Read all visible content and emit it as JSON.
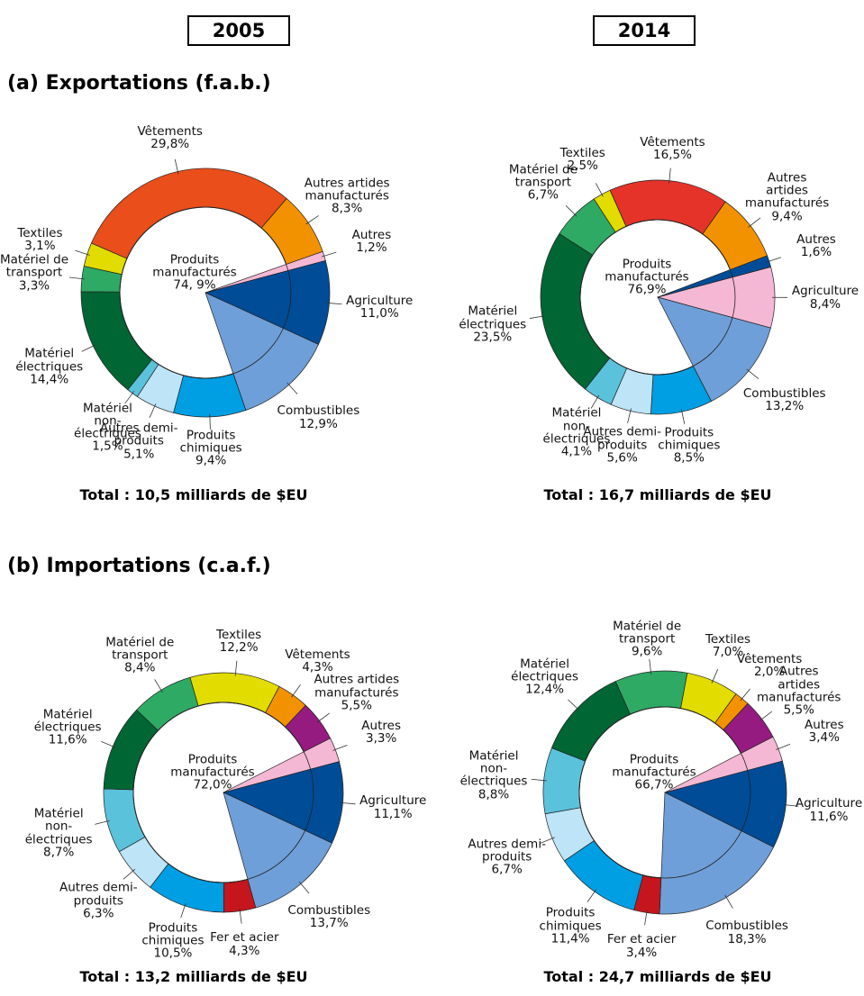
{
  "columns": [
    "2005",
    "2014"
  ],
  "sections": [
    "(a) Exportations (f.a.b.)",
    "(b) Importations (c.a.f.)"
  ],
  "chart_data": [
    {
      "type": "pie",
      "subtitle": "Total : 10,5 milliards de $EU",
      "center": {
        "label": "Produits\nmanufacturés",
        "value": 74.9,
        "value_label": "74, 9%"
      },
      "categories": [
        "Agriculture",
        "Combustibles",
        "Produits\nchimiques",
        "Autres demi-\nproduits",
        "Matériel\nnon-\nélectriques",
        "Matériel\nélectriques",
        "Matériel de\ntransport",
        "Textiles",
        "Vêtements",
        "Autres artides\nmanufacturés",
        "Autres"
      ],
      "values": [
        11.0,
        12.9,
        9.4,
        5.1,
        1.5,
        14.4,
        3.3,
        3.1,
        29.8,
        8.3,
        1.2
      ],
      "value_labels": [
        "11,0%",
        "12,9%",
        "9,4%",
        "5,1%",
        "1,5%",
        "14,4%",
        "3,3%",
        "3,1%",
        "29,8%",
        "8,3%",
        "1,2%"
      ],
      "ring": [
        false,
        false,
        true,
        true,
        true,
        true,
        true,
        true,
        true,
        true,
        false
      ],
      "colors": [
        "#004c97",
        "#6f9fd8",
        "#009fe3",
        "#bde4f7",
        "#5bc2dc",
        "#006633",
        "#2eaa64",
        "#e2dc00",
        "#e94e1b",
        "#f39200",
        "#f5b8d4"
      ]
    },
    {
      "type": "pie",
      "subtitle": "Total : 16,7 milliards de $EU",
      "center": {
        "label": "Produits\nmanufacturés",
        "value": 76.9,
        "value_label": "76,9%"
      },
      "categories": [
        "Agriculture",
        "Combustibles",
        "Produits\nchimiques",
        "Autres demi-\nproduits",
        "Matériel\nnon-\nélectriques",
        "Matériel\nélectriques",
        "Matériel de\ntransport",
        "Textiles",
        "Vêtements",
        "Autres artides\nmanufacturés",
        "Autres"
      ],
      "values": [
        8.4,
        13.2,
        8.5,
        5.6,
        4.1,
        23.5,
        6.7,
        2.5,
        16.5,
        9.4,
        1.6
      ],
      "value_labels": [
        "8,4%",
        "13,2%",
        "8,5%",
        "5,6%",
        "4,1%",
        "23,5%",
        "6,7%",
        "2,5%",
        "16,5%",
        "9,4%",
        "1,6%"
      ],
      "ring": [
        false,
        false,
        true,
        true,
        true,
        true,
        true,
        true,
        true,
        true,
        false
      ],
      "colors": [
        "#f5b8d4",
        "#6f9fd8",
        "#009fe3",
        "#bde4f7",
        "#5bc2dc",
        "#006633",
        "#2eaa64",
        "#e2dc00",
        "#e5332a",
        "#f39200",
        "#004c97"
      ]
    },
    {
      "type": "pie",
      "subtitle": "Total : 13,2 milliards de $EU",
      "center": {
        "label": "Produits\nmanufacturés",
        "value": 72.0,
        "value_label": "72,0%"
      },
      "categories": [
        "Agriculture",
        "Combustibles",
        "Fer et acier",
        "Produits\nchimiques",
        "Autres demi-\nproduits",
        "Matériel\nnon-\nélectriques",
        "Matériel\nélectriques",
        "Matériel de\ntransport",
        "Textiles",
        "Vêtements",
        "Autres artides\nmanufacturés",
        "Autres"
      ],
      "values": [
        11.1,
        13.7,
        4.3,
        10.5,
        6.3,
        8.7,
        11.6,
        8.4,
        12.2,
        4.3,
        5.5,
        3.3
      ],
      "value_labels": [
        "11,1%",
        "13,7%",
        "4,3%",
        "10,5%",
        "6,3%",
        "8,7%",
        "11,6%",
        "8,4%",
        "12,2%",
        "4,3%",
        "5,5%",
        "3,3%"
      ],
      "ring": [
        false,
        false,
        true,
        true,
        true,
        true,
        true,
        true,
        true,
        true,
        true,
        false
      ],
      "colors": [
        "#004c97",
        "#6f9fd8",
        "#c4161c",
        "#009fe3",
        "#bde4f7",
        "#5bc2dc",
        "#006633",
        "#2eaa64",
        "#e2dc00",
        "#f39200",
        "#951b81",
        "#f5b8d4"
      ]
    },
    {
      "type": "pie",
      "subtitle": "Total : 24,7 milliards de $EU",
      "center": {
        "label": "Produits\nmanufacturés",
        "value": 66.7,
        "value_label": "66,7%"
      },
      "categories": [
        "Agriculture",
        "Combustibles",
        "Fer et acier",
        "Produits\nchimiques",
        "Autres demi-\nproduits",
        "Matériel\nnon-\nélectriques",
        "Matériel\nélectriques",
        "Matériel de\ntransport",
        "Textiles",
        "Vêtements",
        "Autres artides\nmanufacturés",
        "Autres"
      ],
      "values": [
        11.6,
        18.3,
        3.4,
        11.4,
        6.7,
        8.8,
        12.4,
        9.6,
        7.0,
        2.0,
        5.5,
        3.4
      ],
      "value_labels": [
        "11,6%",
        "18,3%",
        "3,4%",
        "11,4%",
        "6,7%",
        "8,8%",
        "12,4%",
        "9,6%",
        "7,0%",
        "2,0%",
        "5,5%",
        "3,4%"
      ],
      "ring": [
        false,
        false,
        true,
        true,
        true,
        true,
        true,
        true,
        true,
        true,
        true,
        false
      ],
      "colors": [
        "#004c97",
        "#6f9fd8",
        "#c4161c",
        "#009fe3",
        "#bde4f7",
        "#5bc2dc",
        "#006633",
        "#2eaa64",
        "#e2dc00",
        "#f39200",
        "#951b81",
        "#f5b8d4"
      ]
    }
  ]
}
